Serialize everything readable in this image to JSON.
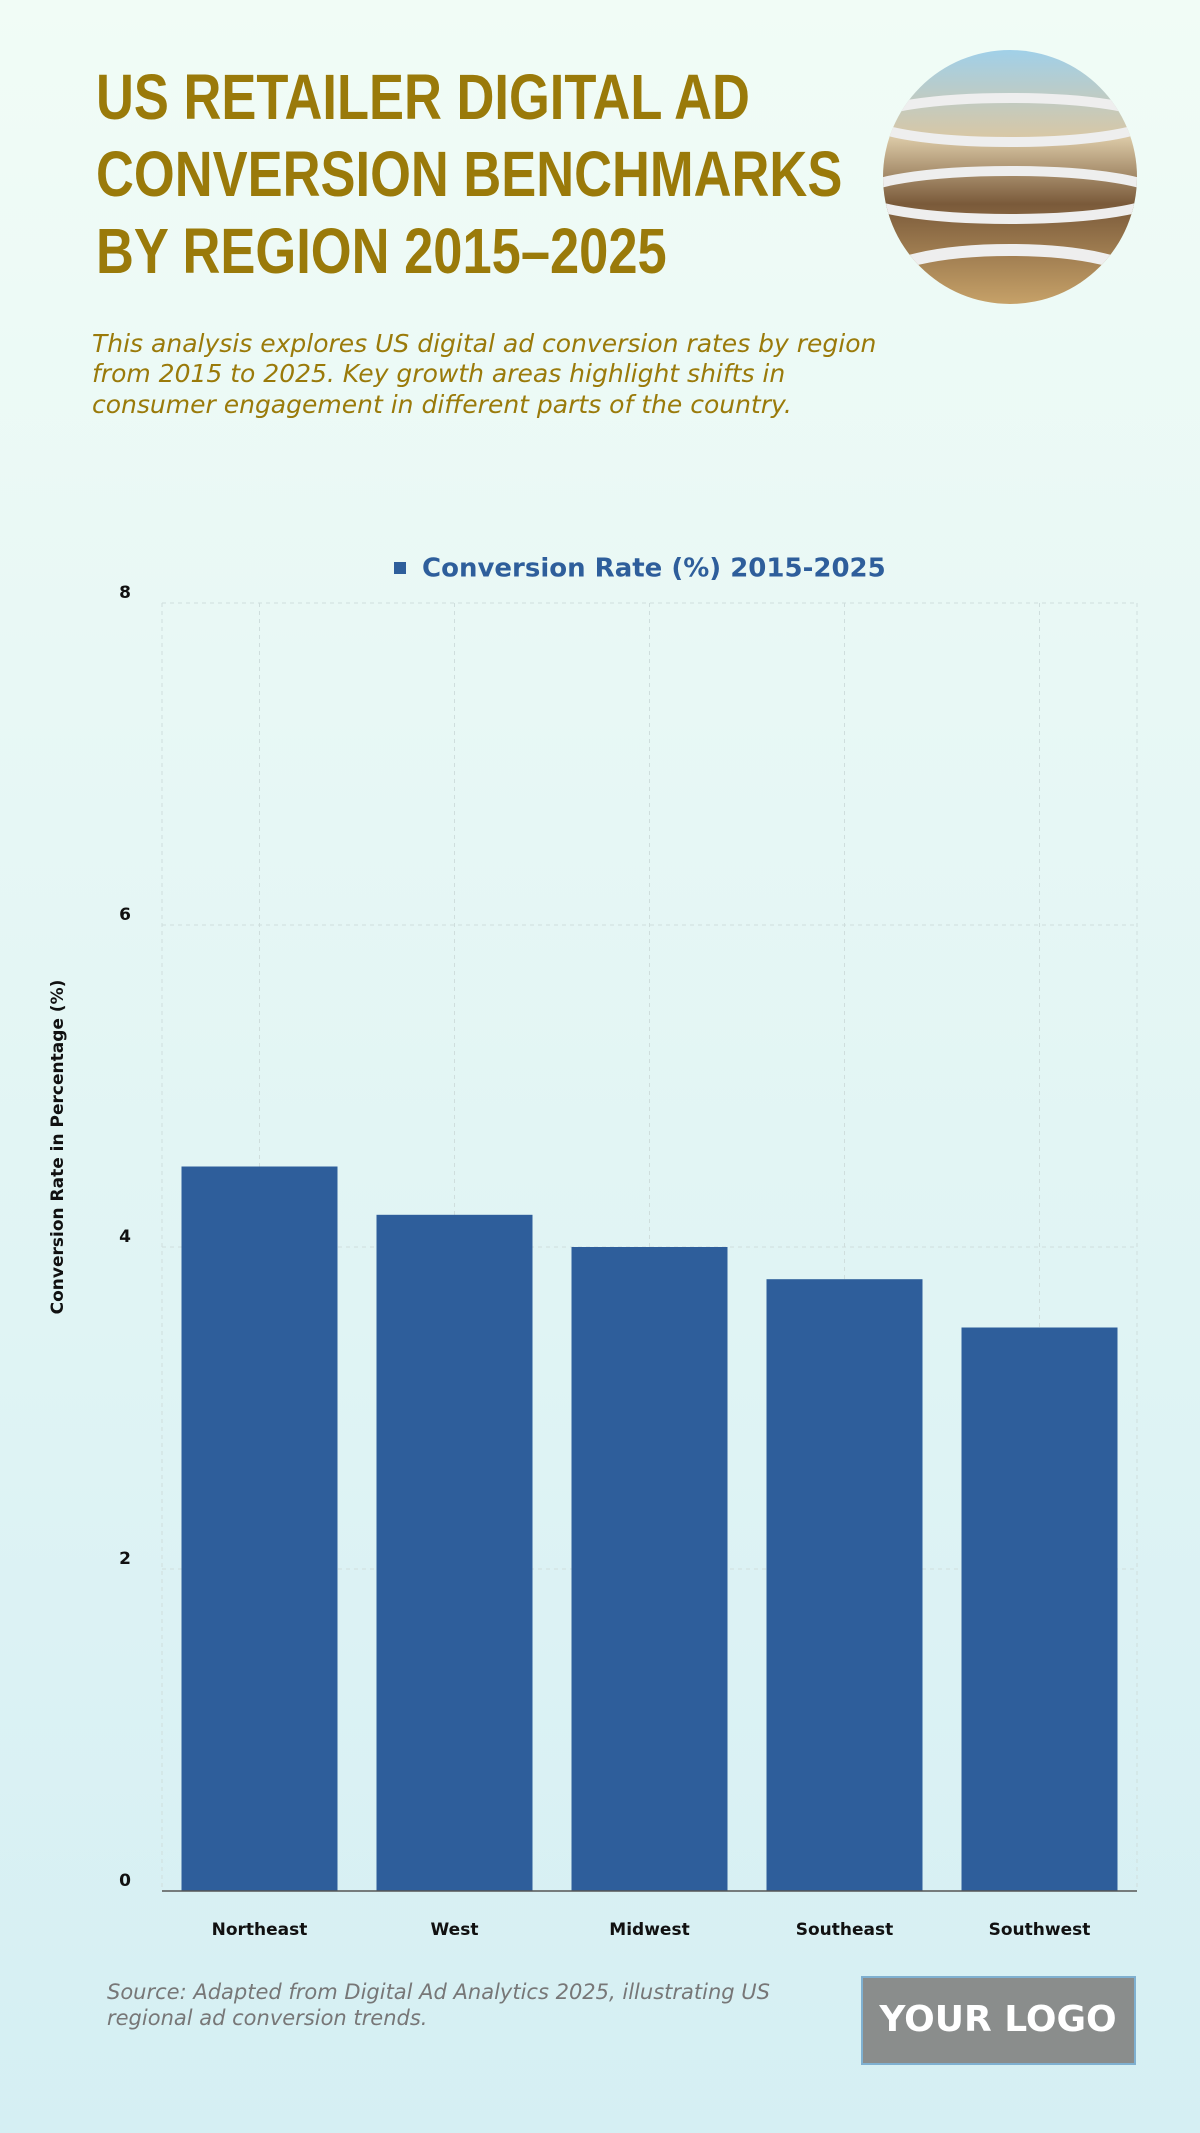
{
  "chart_data": {
    "type": "bar",
    "title": [
      "US RETAILER DIGITAL AD",
      "CONVERSION BENCHMARKS",
      "BY REGION 2015–2025"
    ],
    "subtitle": [
      "This analysis explores US digital ad conversion rates by region",
      "from 2015 to 2025. Key growth areas highlight shifts in",
      "consumer engagement in different parts of the country."
    ],
    "categories": [
      "Northeast",
      "West",
      "Midwest",
      "Southeast",
      "Southwest"
    ],
    "series": [
      {
        "name": "Conversion Rate (%) 2015-2025",
        "color": "#2e5e9b",
        "values": [
          4.5,
          4.2,
          4.0,
          3.8,
          3.5
        ]
      }
    ],
    "ylabel": "Conversion Rate in Percentage (%)",
    "ylim": [
      0,
      8
    ],
    "yticks": [
      0,
      2,
      4,
      6,
      8
    ],
    "grid": true,
    "legend": "top",
    "source": [
      "Source: Adapted from Digital Ad Analytics 2025, illustrating US",
      "regional ad conversion trends."
    ],
    "logo": "YOUR LOGO"
  }
}
